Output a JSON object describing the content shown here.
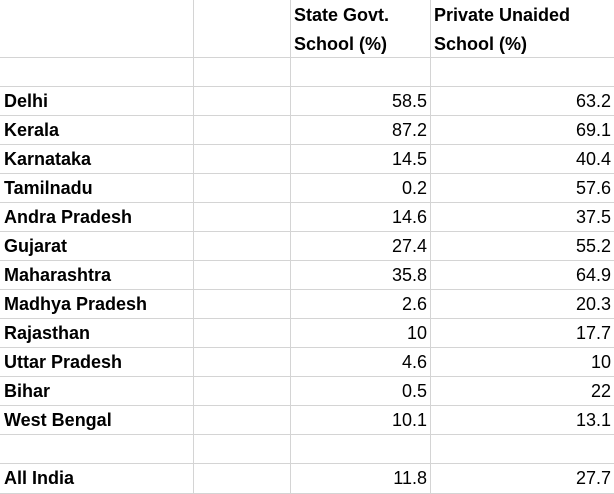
{
  "columns": {
    "state_govt": "State Govt. School (%)",
    "private_unaided": "Private Unaided School (%)"
  },
  "rows": [
    {
      "state": "Delhi",
      "govt": "58.5",
      "private": "63.2"
    },
    {
      "state": "Kerala",
      "govt": "87.2",
      "private": "69.1"
    },
    {
      "state": "Karnataka",
      "govt": "14.5",
      "private": "40.4"
    },
    {
      "state": "Tamilnadu",
      "govt": "0.2",
      "private": "57.6"
    },
    {
      "state": "Andra Pradesh",
      "govt": "14.6",
      "private": "37.5"
    },
    {
      "state": "Gujarat",
      "govt": "27.4",
      "private": "55.2"
    },
    {
      "state": "Maharashtra",
      "govt": "35.8",
      "private": "64.9"
    },
    {
      "state": "Madhya Pradesh",
      "govt": "2.6",
      "private": "20.3"
    },
    {
      "state": "Rajasthan",
      "govt": "10",
      "private": "17.7"
    },
    {
      "state": "Uttar Pradesh",
      "govt": "4.6",
      "private": "10"
    },
    {
      "state": "Bihar",
      "govt": "0.5",
      "private": "22"
    },
    {
      "state": "West Bengal",
      "govt": "10.1",
      "private": "13.1"
    }
  ],
  "total": {
    "state": "All India",
    "govt": "11.8",
    "private": "27.7"
  }
}
